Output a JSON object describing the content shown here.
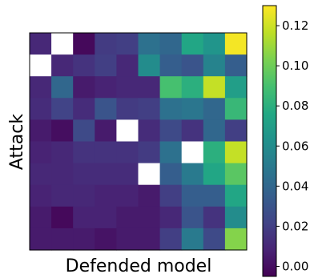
{
  "chart_data": {
    "type": "heatmap",
    "xlabel": "Defended model",
    "ylabel": "Attack",
    "rows": 10,
    "cols": 10,
    "colormap": "viridis",
    "colorbar": {
      "min": -0.005,
      "max": 0.13,
      "ticks": [
        0.0,
        0.02,
        0.04,
        0.06,
        0.08,
        0.1,
        0.12
      ],
      "tick_labels": [
        "0.00",
        "0.02",
        "0.04",
        "0.06",
        "0.08",
        "0.10",
        "0.12"
      ]
    },
    "missing_color": "#ffffff",
    "values": [
      [
        0.01,
        null,
        -0.002,
        0.018,
        0.02,
        0.045,
        0.04,
        0.075,
        0.065,
        0.128
      ],
      [
        null,
        0.01,
        0.015,
        0.02,
        0.01,
        0.06,
        0.035,
        0.03,
        0.055,
        0.035
      ],
      [
        0.01,
        0.04,
        0.005,
        0.008,
        0.01,
        0.01,
        0.09,
        0.08,
        0.118,
        0.07
      ],
      [
        0.012,
        0.022,
        0.012,
        0.03,
        0.018,
        0.02,
        0.045,
        0.048,
        0.04,
        0.085
      ],
      [
        0.005,
        0.0,
        0.025,
        0.005,
        null,
        0.012,
        0.025,
        0.015,
        0.04,
        0.02
      ],
      [
        0.008,
        0.01,
        0.015,
        0.015,
        0.015,
        0.018,
        0.045,
        null,
        0.08,
        0.118
      ],
      [
        0.01,
        0.01,
        0.012,
        0.012,
        0.012,
        null,
        0.035,
        0.05,
        0.075,
        0.095
      ],
      [
        0.008,
        0.01,
        0.01,
        0.008,
        0.008,
        0.005,
        0.02,
        0.035,
        0.035,
        0.075
      ],
      [
        0.005,
        -0.002,
        0.008,
        0.008,
        0.005,
        0.005,
        0.01,
        0.03,
        0.015,
        0.06
      ],
      [
        0.005,
        0.005,
        0.005,
        0.002,
        0.005,
        0.005,
        0.02,
        0.05,
        0.025,
        0.105
      ]
    ]
  }
}
